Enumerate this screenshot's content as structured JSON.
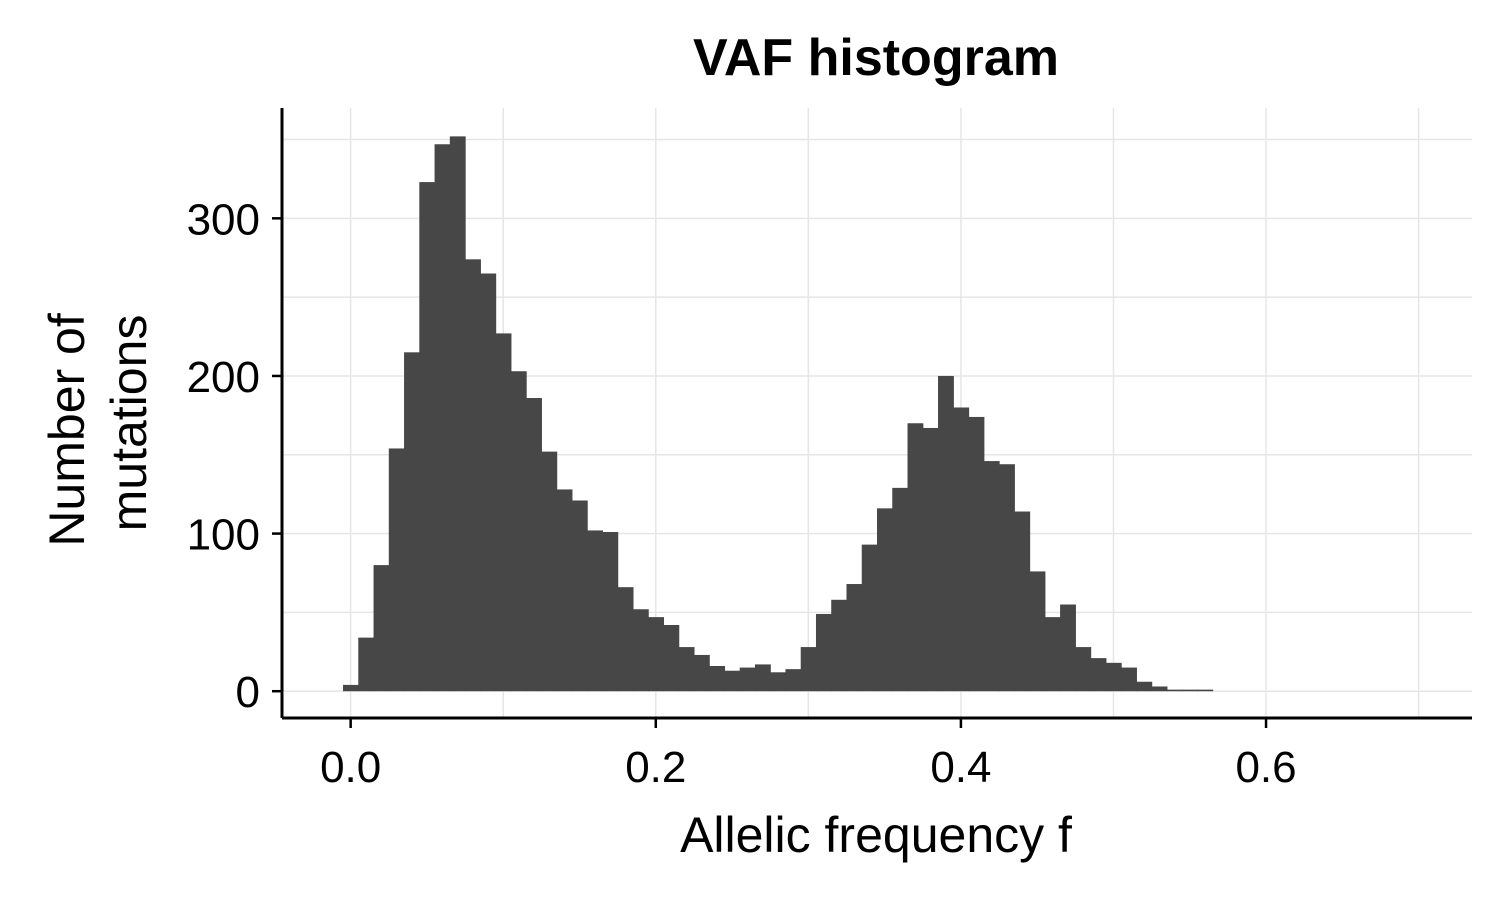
{
  "chart_data": {
    "type": "bar",
    "title": "VAF histogram",
    "xlabel": "Allelic frequency f",
    "ylabel_lines": [
      "Number of",
      "mutations"
    ],
    "xlim": [
      -0.045,
      0.735
    ],
    "ylim": [
      -17,
      370
    ],
    "x_ticks": [
      0.0,
      0.2,
      0.4,
      0.6
    ],
    "x_tick_labels": [
      "0.0",
      "0.2",
      "0.4",
      "0.6"
    ],
    "y_ticks": [
      0,
      100,
      200,
      300
    ],
    "y_tick_labels": [
      "0",
      "100",
      "200",
      "300"
    ],
    "grid": true,
    "bar_color": "#474747",
    "bin_width": 0.01,
    "bin_starts": [
      -0.005,
      0.005,
      0.015,
      0.025,
      0.035,
      0.045,
      0.055,
      0.065,
      0.075,
      0.085,
      0.095,
      0.105,
      0.115,
      0.125,
      0.135,
      0.145,
      0.155,
      0.165,
      0.175,
      0.185,
      0.195,
      0.205,
      0.215,
      0.225,
      0.235,
      0.245,
      0.255,
      0.265,
      0.275,
      0.285,
      0.295,
      0.305,
      0.315,
      0.325,
      0.335,
      0.345,
      0.355,
      0.365,
      0.375,
      0.385,
      0.395,
      0.405,
      0.415,
      0.425,
      0.435,
      0.445,
      0.455,
      0.465,
      0.475,
      0.485,
      0.495,
      0.505,
      0.515,
      0.525,
      0.535,
      0.545,
      0.555,
      0.565
    ],
    "values": [
      4,
      34,
      80,
      154,
      215,
      323,
      347,
      352,
      274,
      265,
      227,
      203,
      186,
      152,
      128,
      121,
      102,
      101,
      66,
      52,
      47,
      42,
      28,
      23,
      16,
      13,
      15,
      17,
      12,
      14,
      28,
      49,
      58,
      68,
      93,
      116,
      129,
      170,
      167,
      200,
      180,
      174,
      146,
      144,
      114,
      76,
      47,
      55,
      28,
      21,
      18,
      15,
      6,
      3,
      1,
      1,
      1,
      0
    ]
  }
}
